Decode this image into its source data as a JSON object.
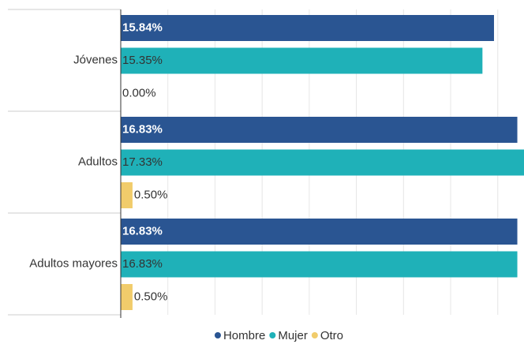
{
  "chart_data": {
    "type": "hbar",
    "categories": [
      "Jóvenes",
      "Adultos",
      "Adultos mayores"
    ],
    "series": [
      {
        "name": "Hombre",
        "color": "#2a5592",
        "values": [
          15.84,
          16.83,
          16.83
        ],
        "value_labels": [
          "15.84%",
          "16.83%",
          "16.83%"
        ]
      },
      {
        "name": "Mujer",
        "color": "#1fb1b8",
        "values": [
          15.35,
          17.33,
          16.83
        ],
        "value_labels": [
          "15.35%",
          "17.33%",
          "16.83%"
        ]
      },
      {
        "name": "Otro",
        "color": "#f1cc6b",
        "values": [
          0,
          0.5,
          0.5
        ],
        "value_labels": [
          "0.00%",
          "0.50%",
          "0.50%"
        ]
      }
    ],
    "xlim": [
      0,
      18
    ],
    "xticks": [
      0,
      2,
      4,
      6,
      8,
      10,
      12,
      14,
      16,
      18
    ],
    "grid": true,
    "legend": "bottom"
  }
}
